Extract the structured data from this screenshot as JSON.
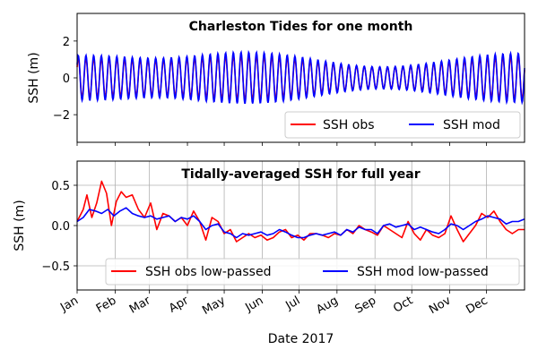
{
  "chart_data": [
    {
      "type": "line",
      "title": "Charleston Tides for one month",
      "xlabel": "",
      "ylabel": "SSH (m)",
      "ylim": [
        -3.5,
        3.5
      ],
      "yticks": [
        2,
        0,
        -2
      ],
      "ytick_labels": [
        "2",
        "0",
        "−2"
      ],
      "grid": false,
      "legend_position": "lower-right",
      "legend_columns": 2,
      "x_range_days": [
        0,
        30
      ],
      "series": [
        {
          "name": "SSH obs",
          "color": "#ff0000",
          "tidal_amplitude_m2": 0.92,
          "tidal_amplitude_n2": 0.2,
          "tidal_amplitude_s2": 0.15,
          "mean_offset": 0.0
        },
        {
          "name": "SSH mod",
          "color": "#0000ff",
          "tidal_amplitude_m2": 1.05,
          "tidal_amplitude_n2": 0.25,
          "tidal_amplitude_s2": 0.2,
          "mean_offset": 0.0
        }
      ]
    },
    {
      "type": "line",
      "title": "Tidally-averaged SSH for full year",
      "xlabel": "Date 2017",
      "ylabel": "SSH (m)",
      "ylim": [
        -0.8,
        0.8
      ],
      "yticks": [
        0.5,
        0.0,
        -0.5
      ],
      "ytick_labels": [
        "0.5",
        "0.0",
        "−0.5"
      ],
      "grid": true,
      "legend_position": "lower-center",
      "legend_columns": 2,
      "x_tick_labels": [
        "Jan",
        "Feb",
        "Mar",
        "Apr",
        "May",
        "Jun",
        "Jul",
        "Aug",
        "Sep",
        "Oct",
        "Nov",
        "Dec"
      ],
      "x_tick_days": [
        0,
        31,
        59,
        90,
        120,
        151,
        181,
        212,
        243,
        273,
        304,
        334
      ],
      "x_range_days": [
        0,
        365
      ],
      "series": [
        {
          "name": "SSH obs low-passed",
          "color": "#ff0000",
          "x": [
            0,
            5,
            8,
            12,
            16,
            20,
            24,
            28,
            32,
            36,
            40,
            45,
            50,
            55,
            60,
            65,
            70,
            75,
            80,
            85,
            90,
            95,
            100,
            105,
            110,
            115,
            120,
            125,
            130,
            135,
            140,
            145,
            150,
            155,
            160,
            165,
            170,
            175,
            180,
            185,
            190,
            195,
            200,
            205,
            210,
            215,
            220,
            225,
            230,
            235,
            240,
            245,
            250,
            255,
            260,
            265,
            270,
            275,
            280,
            285,
            290,
            295,
            300,
            305,
            310,
            315,
            320,
            325,
            330,
            335,
            340,
            345,
            350,
            355,
            360,
            365
          ],
          "y": [
            0.05,
            0.2,
            0.38,
            0.1,
            0.28,
            0.55,
            0.4,
            0.0,
            0.3,
            0.42,
            0.35,
            0.38,
            0.2,
            0.1,
            0.28,
            -0.05,
            0.15,
            0.12,
            0.05,
            0.1,
            0.0,
            0.18,
            0.05,
            -0.18,
            0.1,
            0.05,
            -0.1,
            -0.05,
            -0.2,
            -0.15,
            -0.1,
            -0.15,
            -0.12,
            -0.18,
            -0.15,
            -0.08,
            -0.05,
            -0.15,
            -0.12,
            -0.18,
            -0.1,
            -0.1,
            -0.12,
            -0.15,
            -0.1,
            -0.12,
            -0.05,
            -0.1,
            0.0,
            -0.05,
            -0.08,
            -0.12,
            0.0,
            -0.05,
            -0.1,
            -0.15,
            0.05,
            -0.1,
            -0.18,
            -0.05,
            -0.12,
            -0.15,
            -0.1,
            0.12,
            -0.05,
            -0.2,
            -0.1,
            0.0,
            0.15,
            0.1,
            0.18,
            0.05,
            -0.05,
            -0.1,
            -0.05,
            -0.05
          ]
        },
        {
          "name": "SSH mod low-passed",
          "color": "#0000ff",
          "x": [
            0,
            5,
            10,
            15,
            20,
            25,
            30,
            35,
            40,
            45,
            50,
            55,
            60,
            65,
            70,
            75,
            80,
            85,
            90,
            95,
            100,
            105,
            110,
            115,
            120,
            125,
            130,
            135,
            140,
            145,
            150,
            155,
            160,
            165,
            170,
            175,
            180,
            185,
            190,
            195,
            200,
            205,
            210,
            215,
            220,
            225,
            230,
            235,
            240,
            245,
            250,
            255,
            260,
            265,
            270,
            275,
            280,
            285,
            290,
            295,
            300,
            305,
            310,
            315,
            320,
            325,
            330,
            335,
            340,
            345,
            350,
            355,
            360,
            365
          ],
          "y": [
            0.05,
            0.1,
            0.2,
            0.18,
            0.15,
            0.2,
            0.12,
            0.18,
            0.22,
            0.15,
            0.12,
            0.1,
            0.12,
            0.08,
            0.1,
            0.12,
            0.05,
            0.1,
            0.08,
            0.12,
            0.05,
            -0.05,
            0.0,
            0.02,
            -0.08,
            -0.1,
            -0.15,
            -0.1,
            -0.12,
            -0.1,
            -0.08,
            -0.12,
            -0.1,
            -0.05,
            -0.08,
            -0.12,
            -0.15,
            -0.15,
            -0.12,
            -0.1,
            -0.12,
            -0.1,
            -0.08,
            -0.12,
            -0.05,
            -0.08,
            -0.02,
            -0.05,
            -0.05,
            -0.1,
            0.0,
            0.02,
            -0.02,
            0.0,
            0.02,
            -0.05,
            -0.02,
            -0.05,
            -0.08,
            -0.1,
            -0.05,
            0.02,
            0.0,
            -0.05,
            0.0,
            0.05,
            0.08,
            0.12,
            0.1,
            0.08,
            0.02,
            0.05,
            0.05,
            0.08
          ]
        }
      ]
    }
  ]
}
